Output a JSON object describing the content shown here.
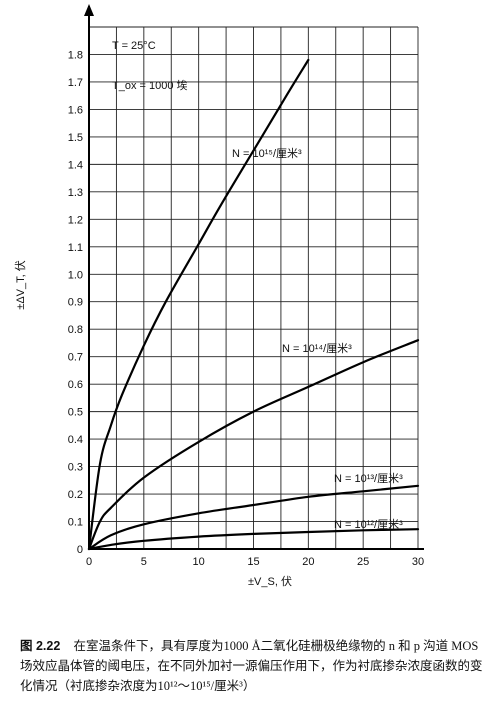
{
  "chart_data": {
    "type": "line",
    "title": "",
    "xlabel": "±V_S, 伏",
    "ylabel": "±ΔV_T, 伏",
    "xlim": [
      0,
      30
    ],
    "ylim": [
      0,
      1.9
    ],
    "x_ticks": [
      0,
      5,
      10,
      15,
      20,
      25,
      30
    ],
    "y_ticks": [
      0,
      0.1,
      0.2,
      0.3,
      0.4,
      0.5,
      0.6,
      0.7,
      0.8,
      0.9,
      1.0,
      1.1,
      1.2,
      1.3,
      1.4,
      1.5,
      1.6,
      1.7,
      1.8
    ],
    "grid": true,
    "annotations": [
      "T = 25°C",
      "T_ox = 1000 埃"
    ],
    "series": [
      {
        "name": "N = 10¹⁵/厘米³",
        "x": [
          0,
          1,
          2,
          3,
          5,
          7,
          10,
          12,
          15,
          18,
          20
        ],
        "y": [
          0,
          0.31,
          0.45,
          0.56,
          0.74,
          0.9,
          1.11,
          1.25,
          1.45,
          1.65,
          1.78
        ]
      },
      {
        "name": "N = 10¹⁴/厘米³",
        "x": [
          0,
          1,
          2,
          5,
          10,
          15,
          20,
          25,
          30
        ],
        "y": [
          0,
          0.1,
          0.15,
          0.26,
          0.39,
          0.5,
          0.59,
          0.68,
          0.76
        ]
      },
      {
        "name": "N = 10¹³/厘米³",
        "x": [
          0,
          2,
          5,
          10,
          15,
          20,
          25,
          30
        ],
        "y": [
          0,
          0.05,
          0.09,
          0.13,
          0.16,
          0.19,
          0.21,
          0.23
        ]
      },
      {
        "name": "N = 10¹²/厘米³",
        "x": [
          0,
          2,
          5,
          10,
          15,
          20,
          25,
          30
        ],
        "y": [
          0,
          0.015,
          0.03,
          0.045,
          0.055,
          0.062,
          0.068,
          0.072
        ]
      }
    ]
  },
  "caption": {
    "number": "图 2.22",
    "text": "在室温条件下，具有厚度为1000 Å二氧化硅栅极绝缘物的 n 和 p 沟道 MOS 场效应晶体管的阈电压，在不同外加衬一源偏压作用下，作为衬底掺杂浓度函数的变化情况（衬底掺杂浓度为10¹²～10¹⁵/厘米³）"
  }
}
